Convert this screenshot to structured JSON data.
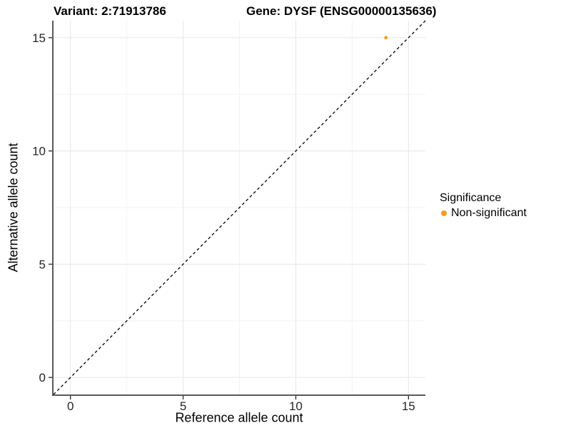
{
  "chart_data": {
    "type": "scatter",
    "titles": [
      "Variant: 2:71913786",
      "Gene: DYSF (ENSG00000135636)"
    ],
    "xlabel": "Reference allele count",
    "ylabel": "Alternative allele count",
    "xlim": [
      -0.75,
      15.75
    ],
    "ylim": [
      -0.75,
      15.75
    ],
    "x_ticks": [
      0,
      5,
      10,
      15
    ],
    "y_ticks": [
      0,
      5,
      10,
      15
    ],
    "x_minor_ticks": [
      2.5,
      7.5,
      12.5
    ],
    "y_minor_ticks": [
      2.5,
      7.5,
      12.5
    ],
    "grid": true,
    "legend_position": "right",
    "legend_title": "Significance",
    "reference_line": {
      "type": "identity y=x",
      "style": "dashed",
      "color": "#000000"
    },
    "series": [
      {
        "name": "Non-significant",
        "color": "#F89C20",
        "points": [
          {
            "x": 14,
            "y": 15
          }
        ]
      }
    ],
    "style_colors": {
      "axis_line": "#595959",
      "tick": "#333333",
      "grid_major": "#e7e7e7",
      "grid_minor": "#f2f2f2",
      "tick_label": "#262626"
    }
  }
}
